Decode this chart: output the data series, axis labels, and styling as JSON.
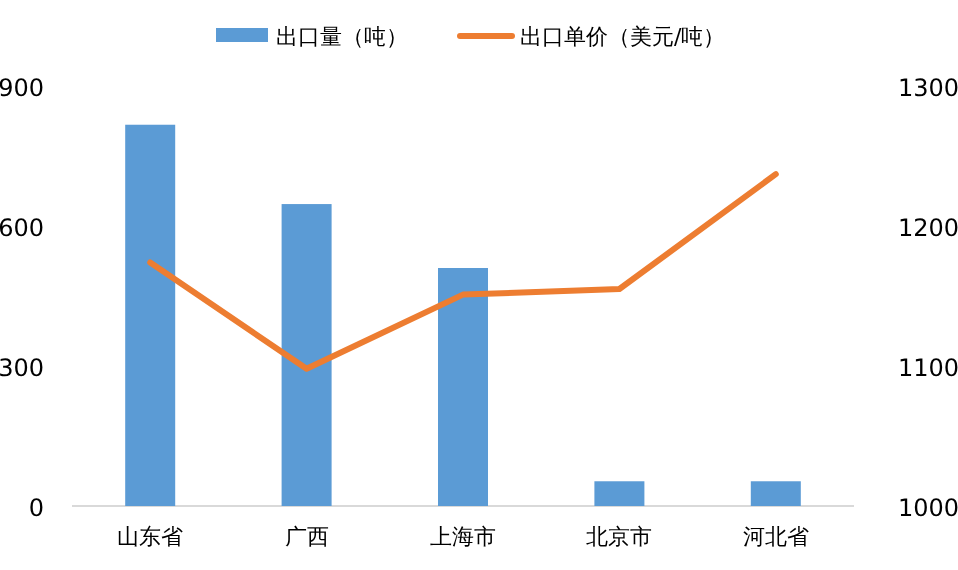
{
  "chart_data": {
    "type": "bar",
    "categories": [
      "山东省",
      "广西",
      "上海市",
      "北京市",
      "河北省"
    ],
    "series": [
      {
        "name": "出口量（吨）",
        "color": "#5b9bd5",
        "values": [
          817,
          647,
          510,
          53,
          53
        ]
      },
      {
        "name": "出口单价（美元/吨）",
        "type": "line",
        "axis": "y2",
        "color": "#ed7d31",
        "values": [
          1174,
          1098,
          1151,
          1155,
          1237
        ]
      }
    ],
    "ylim": [
      0,
      900
    ],
    "yticks": [
      0,
      300,
      600,
      900
    ],
    "y2lim": [
      1000,
      1300
    ],
    "y2ticks": [
      1000,
      1100,
      1200,
      1300
    ],
    "grid": false,
    "legend": "top",
    "marker": "none"
  }
}
